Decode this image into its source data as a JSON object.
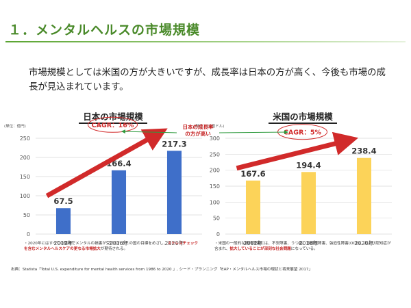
{
  "title": "１．メンタルヘルスの市場規模",
  "intro": "市場規模としては米国の方が大きいですが、成長率は日本の方が高く、今後も市場の成長が見込まれています。",
  "callout": {
    "line1": "日本の成長率",
    "line2": "の方が高い"
  },
  "colors": {
    "accent": "#5aa431",
    "japan_bar": "#3f6fc9",
    "us_bar": "#fcd359",
    "cagr": "#d12a2a",
    "callout_arrow": "#2e9a3d"
  },
  "chart_data": [
    {
      "type": "bar",
      "title": "日本の市場規模",
      "unit": "(単位：億円)",
      "categories": [
        "2012年",
        "2016年",
        "2020年"
      ],
      "values": [
        67.5,
        166.4,
        217.3
      ],
      "ylim": [
        0,
        250
      ],
      "yticks": [
        0,
        50,
        100,
        150,
        200,
        250
      ],
      "grid": true,
      "annotation": "CAGR：16%",
      "bar_color": "#3f6fc9"
    },
    {
      "type": "bar",
      "title": "米国の市場規模",
      "unit": "(単位：10億ドル)",
      "categories": [
        "2012年",
        "2016年",
        "2020年"
      ],
      "values": [
        167.6,
        194.4,
        238.4
      ],
      "ylim": [
        0,
        300
      ],
      "yticks": [
        0,
        50,
        100,
        150,
        200,
        250,
        300
      ],
      "grid": true,
      "annotation": "CAGR：5%",
      "bar_color": "#fcd359"
    }
  ],
  "notes": {
    "left_plain": "・2020年にはすべての職場でメンタルの損害が受けられるとの国の目標をめざし、",
    "left_em": "ストレスチェックを含むメンタルヘルスケアの更なる市場拡大",
    "left_tail": "が期待される。",
    "right_plain": "・米国の一般的な精神障害には、不安障害、うつ病、双極性障害、強迫性障害(OCD)、および認知症が含まれ、",
    "right_em": "拡大していることが深刻な社会問題",
    "right_tail": "になっている。"
  },
  "source": "出典：Statista「Total U.S. expenditure for mental health services from 1986 to 2020 」, シード・プランニング「EAP・メンタルヘルス市場の現状と将来展望 2017」"
}
